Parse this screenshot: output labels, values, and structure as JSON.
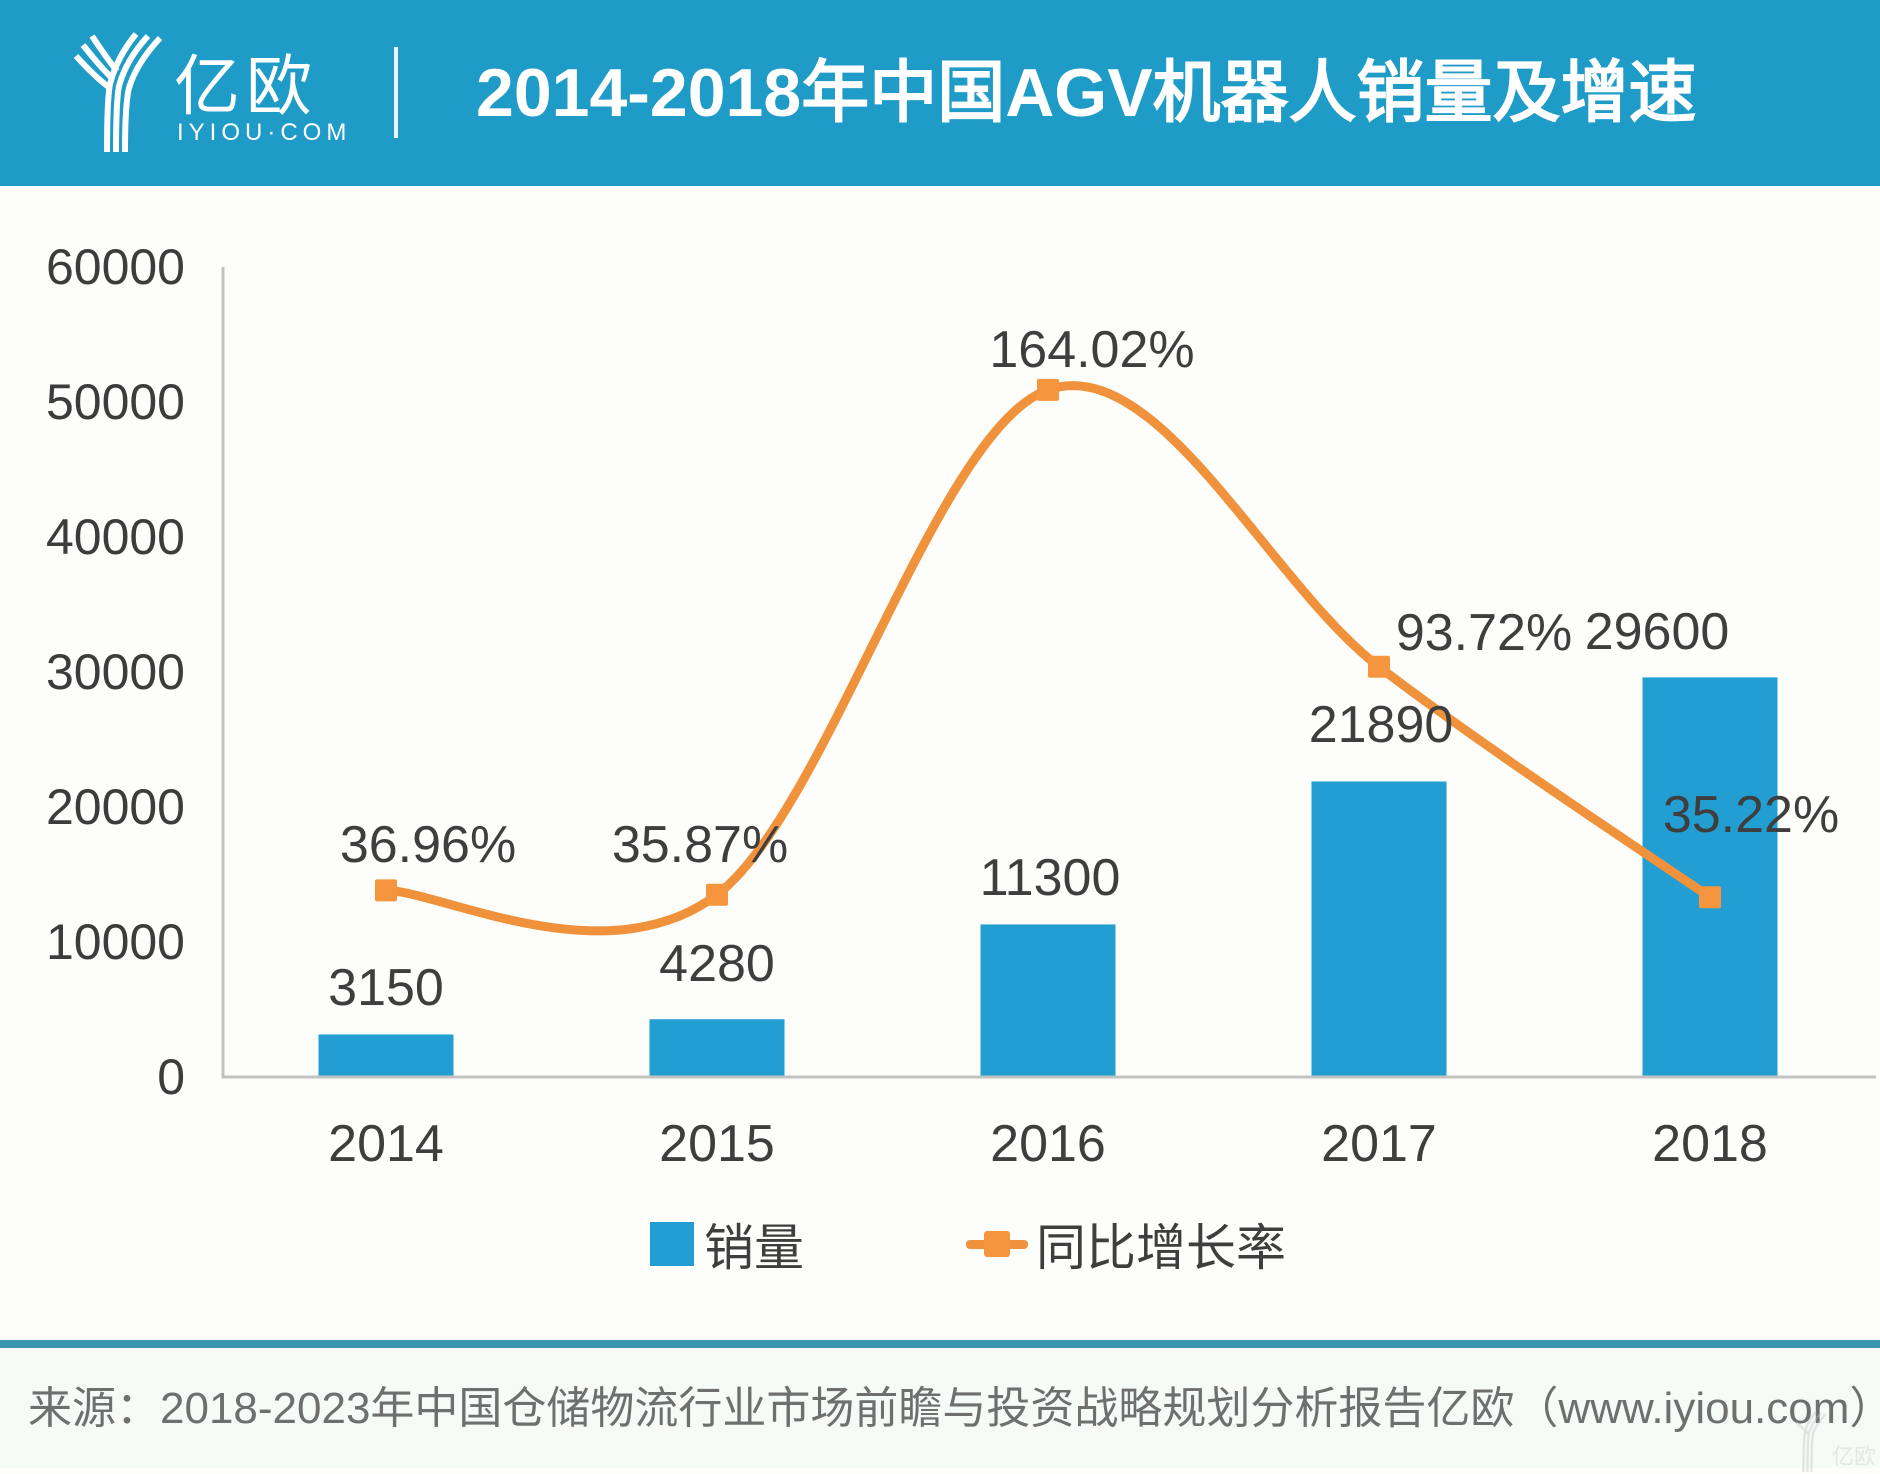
{
  "header": {
    "logo": {
      "name": "亿欧",
      "domain": "IYIOU·COM"
    },
    "title": "2014-2018年中国AGV机器人销量及增速"
  },
  "chart_data": {
    "type": "combo",
    "categories": [
      "2014",
      "2015",
      "2016",
      "2017",
      "2018"
    ],
    "series": [
      {
        "name": "销量",
        "type": "bar",
        "axis": "primary",
        "values": [
          3150,
          4280,
          11300,
          21890,
          29600
        ],
        "color": "#239ed3"
      },
      {
        "name": "同比增长率",
        "type": "line",
        "axis": "secondary",
        "values_pct": [
          36.96,
          35.87,
          164.02,
          93.72,
          35.22
        ],
        "color": "#f0923b",
        "marker_color": "#f5953d"
      }
    ],
    "title": "2014-2018年中国AGV机器人销量及增速",
    "xlabel": "",
    "ylabel": "",
    "ylim": [
      0,
      60000
    ],
    "ytick_step": 10000,
    "secondary_ylim": [
      -10.4,
      195.2
    ],
    "secondary_axis_visible": false,
    "grid": false,
    "legend_position": "bottom",
    "axis_color": "#c2c2c2",
    "label_color": "#3e3e3e"
  },
  "legend": {
    "items": [
      {
        "label": "销量",
        "color": "#239ed3"
      },
      {
        "label": "同比增长率",
        "color": "#f0923b"
      }
    ]
  },
  "footer": {
    "source": "来源：2018-2023年中国仓储物流行业市场前瞻与投资战略规划分析报告",
    "brand": "亿欧（www.iyiou.com）"
  }
}
